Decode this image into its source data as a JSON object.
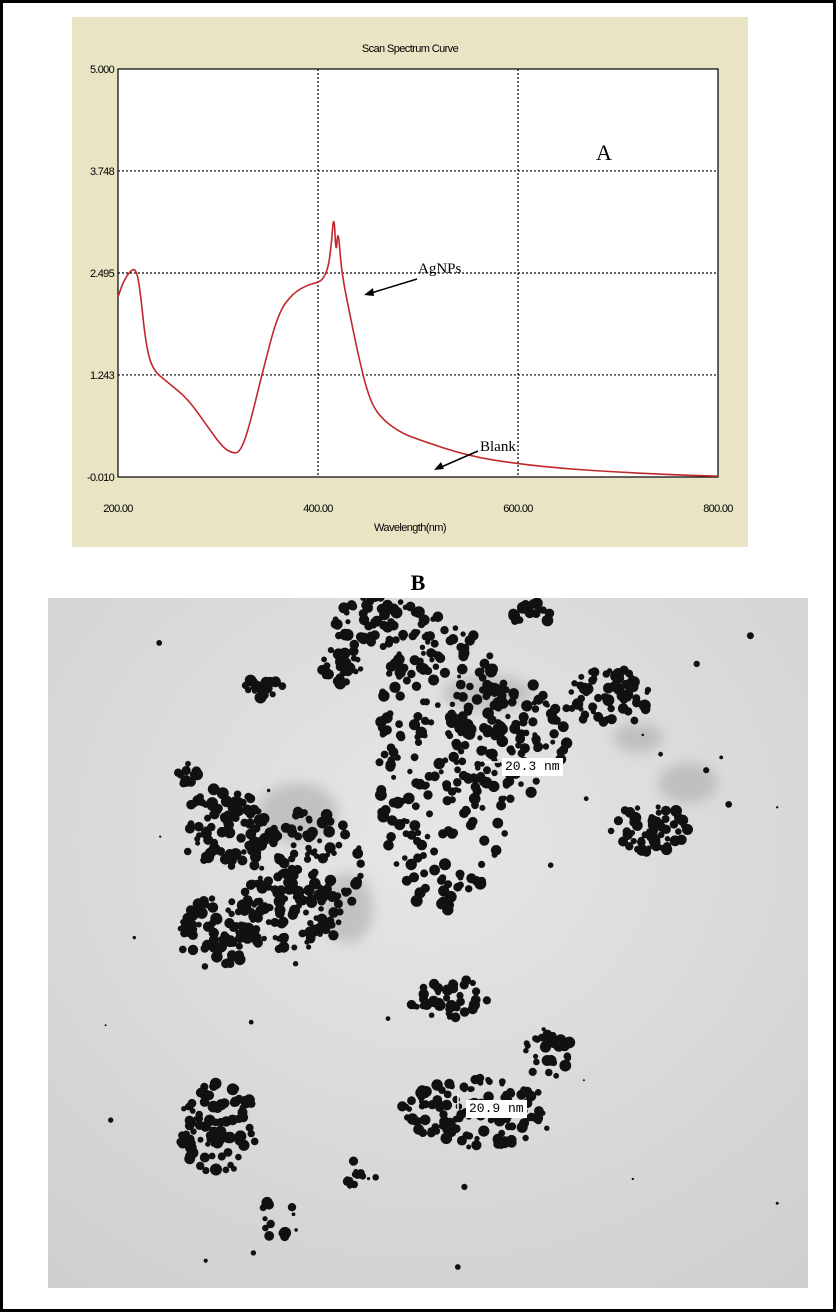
{
  "panel_a": {
    "title": "Scan Spectrum Curve",
    "panel_letter": "A",
    "annotation_agnps": "AgNPs",
    "annotation_blank": "Blank"
  },
  "panel_b": {
    "label": "B",
    "measure_1": "20.3 nm",
    "measure_2": "20.9 nm"
  },
  "chart_data": {
    "type": "line",
    "title": "Scan Spectrum Curve",
    "xlabel": "Wavelength(nm)",
    "ylabel": "",
    "xlim": [
      200,
      800
    ],
    "ylim": [
      -0.01,
      5.0
    ],
    "x_ticks": [
      "200.00",
      "400.00",
      "600.00",
      "800.00"
    ],
    "y_ticks": [
      "5.000",
      "3.748",
      "2.495",
      "1.243",
      "-0.010"
    ],
    "grid": "dotted",
    "line_color": "#c0282c",
    "series": [
      {
        "name": "AgNPs",
        "x": [
          200,
          205,
          212,
          218,
          222,
          228,
          235,
          250,
          270,
          290,
          305,
          315,
          322,
          330,
          345,
          360,
          375,
          390,
          400,
          405,
          410,
          413,
          416,
          418,
          420,
          423,
          426,
          430,
          440,
          450,
          460,
          480,
          500,
          550,
          600,
          650,
          700,
          750,
          800
        ],
        "y": [
          2.2,
          2.38,
          2.52,
          2.55,
          2.3,
          1.6,
          1.3,
          1.15,
          0.95,
          0.6,
          0.35,
          0.28,
          0.3,
          0.55,
          1.3,
          2.0,
          2.25,
          2.35,
          2.38,
          2.42,
          2.55,
          2.8,
          3.25,
          2.7,
          3.05,
          2.6,
          2.35,
          2.1,
          1.5,
          1.0,
          0.75,
          0.55,
          0.45,
          0.25,
          0.15,
          0.09,
          0.05,
          0.02,
          0.0
        ]
      }
    ]
  }
}
